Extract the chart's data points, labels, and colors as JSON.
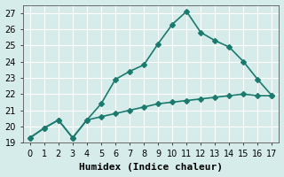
{
  "xlabel": "Humidex (Indice chaleur)",
  "ylabel": "",
  "background_color": "#d6ecea",
  "grid_color": "#ffffff",
  "line_color": "#1a7a6e",
  "x_line1": [
    0,
    1,
    2,
    3,
    4,
    5,
    6,
    7,
    8,
    9,
    10,
    11,
    12,
    13,
    14,
    15,
    16,
    17
  ],
  "y_line1": [
    19.3,
    19.9,
    20.4,
    19.3,
    20.4,
    21.4,
    22.9,
    23.4,
    23.8,
    25.1,
    26.3,
    27.1,
    25.8,
    25.3,
    24.9,
    24.0,
    22.9,
    21.9
  ],
  "x_line2": [
    0,
    1,
    2,
    3,
    4,
    5,
    6,
    7,
    8,
    9,
    10,
    11,
    12,
    13,
    14,
    15,
    16,
    17
  ],
  "y_line2": [
    19.3,
    19.9,
    20.4,
    19.3,
    20.4,
    20.6,
    20.8,
    21.0,
    21.2,
    21.4,
    21.5,
    21.6,
    21.7,
    21.8,
    21.9,
    22.0,
    21.9,
    21.9
  ],
  "xlim": [
    -0.5,
    17.5
  ],
  "ylim": [
    19,
    27.5
  ],
  "yticks": [
    19,
    20,
    21,
    22,
    23,
    24,
    25,
    26,
    27
  ],
  "xticks": [
    0,
    1,
    2,
    3,
    4,
    5,
    6,
    7,
    8,
    9,
    10,
    11,
    12,
    13,
    14,
    15,
    16,
    17
  ],
  "marker": "D",
  "markersize": 3,
  "linewidth": 1.2,
  "title_fontsize": 8,
  "label_fontsize": 8,
  "tick_fontsize": 7
}
